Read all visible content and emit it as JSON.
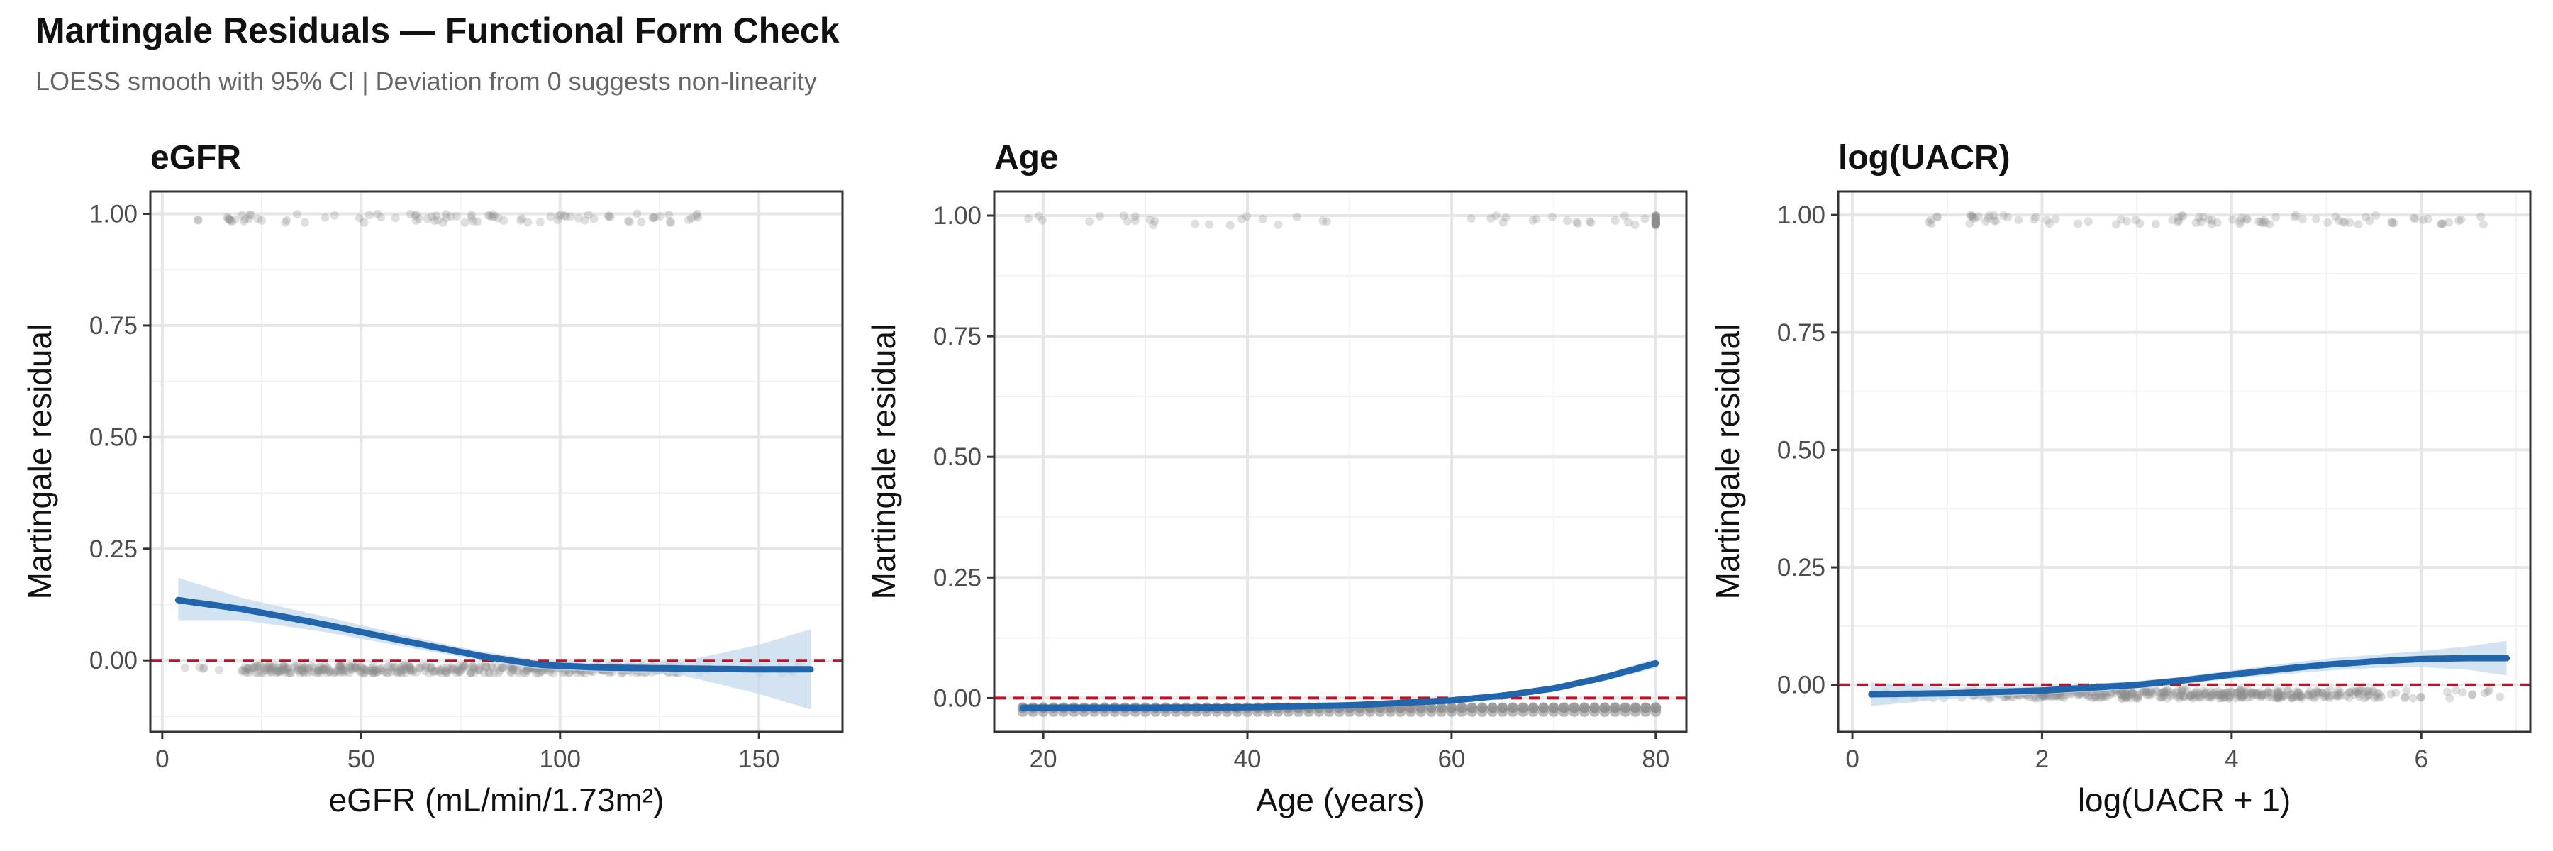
{
  "header": {
    "title": "Martingale Residuals — Functional Form Check",
    "subtitle": "LOESS smooth with 95% CI | Deviation from 0 suggests non-linearity"
  },
  "colors": {
    "loess_line": "#2166ac",
    "ci_band": "#c6d9ee",
    "reference_line": "#b2182b",
    "points": "#8c8c8c",
    "grid": "#e6e6e6",
    "panel_border": "#333333"
  },
  "chart_data": [
    {
      "type": "scatter",
      "title": "eGFR",
      "xlabel": "eGFR (mL/min/1.73m²)",
      "ylabel": "Martingale residual",
      "xlim": [
        -3,
        171
      ],
      "ylim": [
        -0.16,
        1.05
      ],
      "xticks": [
        0,
        50,
        100,
        150
      ],
      "yticks": [
        0,
        0.25,
        0.5,
        0.75,
        1.0
      ],
      "ytick_labels": [
        "0.00",
        "0.25",
        "0.50",
        "0.75",
        "1.00"
      ],
      "reference_y": 0,
      "points": {
        "x_range": [
          4,
          163
        ],
        "event_x_range": [
          8,
          135
        ],
        "event_y": 1.0,
        "censored_y": -0.02
      },
      "loess": {
        "x": [
          4,
          20,
          40,
          60,
          80,
          95,
          110,
          130,
          150,
          163
        ],
        "y": [
          0.135,
          0.115,
          0.082,
          0.045,
          0.01,
          -0.01,
          -0.016,
          -0.018,
          -0.02,
          -0.02
        ],
        "lower": [
          0.09,
          0.09,
          0.065,
          0.032,
          0.0,
          -0.02,
          -0.025,
          -0.032,
          -0.075,
          -0.11
        ],
        "upper": [
          0.185,
          0.14,
          0.1,
          0.058,
          0.02,
          0.0,
          -0.007,
          -0.004,
          0.035,
          0.07
        ]
      }
    },
    {
      "type": "scatter",
      "title": "Age",
      "xlabel": "Age (years)",
      "ylabel": "Martingale residual",
      "xlim": [
        15.2,
        83
      ],
      "ylim": [
        -0.07,
        1.05
      ],
      "xticks": [
        20,
        40,
        60,
        80
      ],
      "yticks": [
        0,
        0.25,
        0.5,
        0.75,
        1.0
      ],
      "ytick_labels": [
        "0.00",
        "0.25",
        "0.50",
        "0.75",
        "1.00"
      ],
      "reference_y": 0,
      "points": {
        "x_range": [
          18,
          80
        ],
        "event_x_range": [
          18,
          80
        ],
        "event_y": 1.0,
        "censored_y": -0.02
      },
      "loess": {
        "x": [
          18,
          30,
          40,
          50,
          60,
          65,
          70,
          75,
          80
        ],
        "y": [
          -0.02,
          -0.02,
          -0.019,
          -0.015,
          -0.005,
          0.005,
          0.02,
          0.043,
          0.072
        ],
        "lower": [
          -0.024,
          -0.023,
          -0.022,
          -0.019,
          -0.009,
          0.0,
          0.014,
          0.036,
          0.062
        ],
        "upper": [
          -0.016,
          -0.017,
          -0.016,
          -0.011,
          -0.001,
          0.01,
          0.026,
          0.05,
          0.082
        ]
      }
    },
    {
      "type": "scatter",
      "title": "log(UACR)",
      "xlabel": "log(UACR + 1)",
      "ylabel": "Martingale residual",
      "xlim": [
        -0.15,
        7.15
      ],
      "ylim": [
        -0.1,
        1.05
      ],
      "xticks": [
        0,
        2,
        4,
        6
      ],
      "yticks": [
        0,
        0.25,
        0.5,
        0.75,
        1.0
      ],
      "ytick_labels": [
        "0.00",
        "0.25",
        "0.50",
        "0.75",
        "1.00"
      ],
      "reference_y": 0,
      "points": {
        "x_range": [
          0.2,
          6.9
        ],
        "event_x_range": [
          0.8,
          6.7
        ],
        "event_y": 1.0,
        "censored_y": -0.02
      },
      "loess": {
        "x": [
          0.2,
          1,
          2,
          3,
          3.5,
          4,
          4.5,
          5,
          5.5,
          6,
          6.5,
          6.9
        ],
        "y": [
          -0.02,
          -0.018,
          -0.012,
          0.0,
          0.01,
          0.022,
          0.033,
          0.043,
          0.05,
          0.055,
          0.057,
          0.057
        ],
        "lower": [
          -0.045,
          -0.03,
          -0.02,
          -0.008,
          0.002,
          0.013,
          0.022,
          0.03,
          0.036,
          0.038,
          0.032,
          0.02
        ],
        "upper": [
          0.005,
          -0.006,
          -0.004,
          0.008,
          0.018,
          0.031,
          0.044,
          0.056,
          0.064,
          0.072,
          0.082,
          0.094
        ]
      }
    }
  ]
}
